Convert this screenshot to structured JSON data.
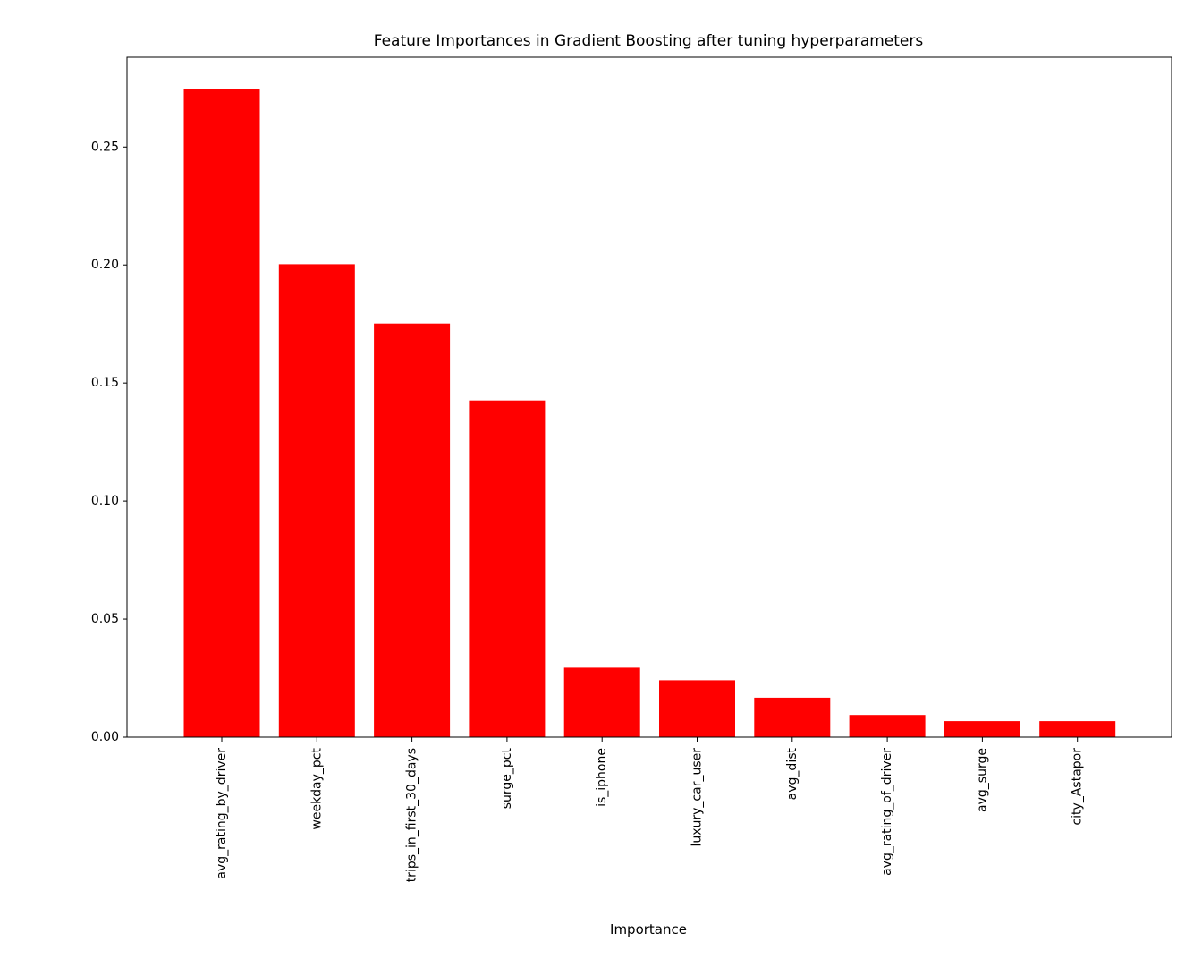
{
  "chart_data": {
    "type": "bar",
    "title": "Feature Importances in Gradient Boosting after tuning hyperparameters",
    "xlabel": "Importance",
    "ylabel": "",
    "categories": [
      "avg_rating_by_driver",
      "weekday_pct",
      "trips_in_first_30_days",
      "surge_pct",
      "is_iphone",
      "luxury_car_user",
      "avg_dist",
      "avg_rating_of_driver",
      "avg_surge",
      "city_Astapor"
    ],
    "values": [
      0.2745,
      0.2003,
      0.1752,
      0.1426,
      0.0294,
      0.0241,
      0.0167,
      0.0094,
      0.0068,
      0.0068
    ],
    "ylim": [
      0,
      0.288
    ],
    "yticks": [
      "0.00",
      "0.05",
      "0.10",
      "0.15",
      "0.20",
      "0.25"
    ],
    "grid": false,
    "legend": "none",
    "bar_color": "#ff0000"
  }
}
